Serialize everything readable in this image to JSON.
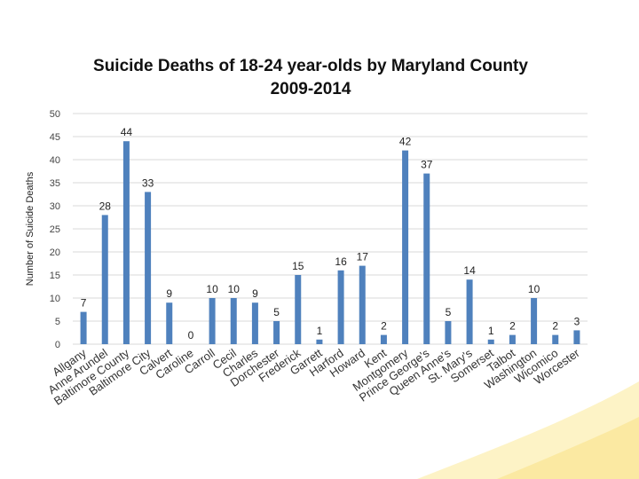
{
  "chart_data": {
    "type": "bar",
    "title": "Suicide Deaths of 18-24 year-olds by Maryland County",
    "subtitle": "2009-2014",
    "xlabel": "",
    "ylabel": "Number of Suicide Deaths",
    "ylim": [
      0,
      50
    ],
    "yticks": [
      0,
      5,
      10,
      15,
      20,
      25,
      30,
      35,
      40,
      45,
      50
    ],
    "grid": true,
    "categories": [
      "Allgany",
      "Anne Arundel",
      "Baltimore County",
      "Baltimore City",
      "Calvert",
      "Caroline",
      "Carroll",
      "Cecil",
      "Charles",
      "Dorchester",
      "Frederick",
      "Garrett",
      "Harford",
      "Howard",
      "Kent",
      "Montgomery",
      "Prince George's",
      "Queen Anne's",
      "St. Mary's",
      "Somerset",
      "Talbot",
      "Washington",
      "Wicomico",
      "Worcester"
    ],
    "values": [
      7,
      28,
      44,
      33,
      9,
      0,
      10,
      10,
      9,
      5,
      15,
      1,
      16,
      17,
      2,
      42,
      37,
      5,
      14,
      1,
      2,
      10,
      2,
      3
    ],
    "bar_color": "#4f81bd"
  }
}
